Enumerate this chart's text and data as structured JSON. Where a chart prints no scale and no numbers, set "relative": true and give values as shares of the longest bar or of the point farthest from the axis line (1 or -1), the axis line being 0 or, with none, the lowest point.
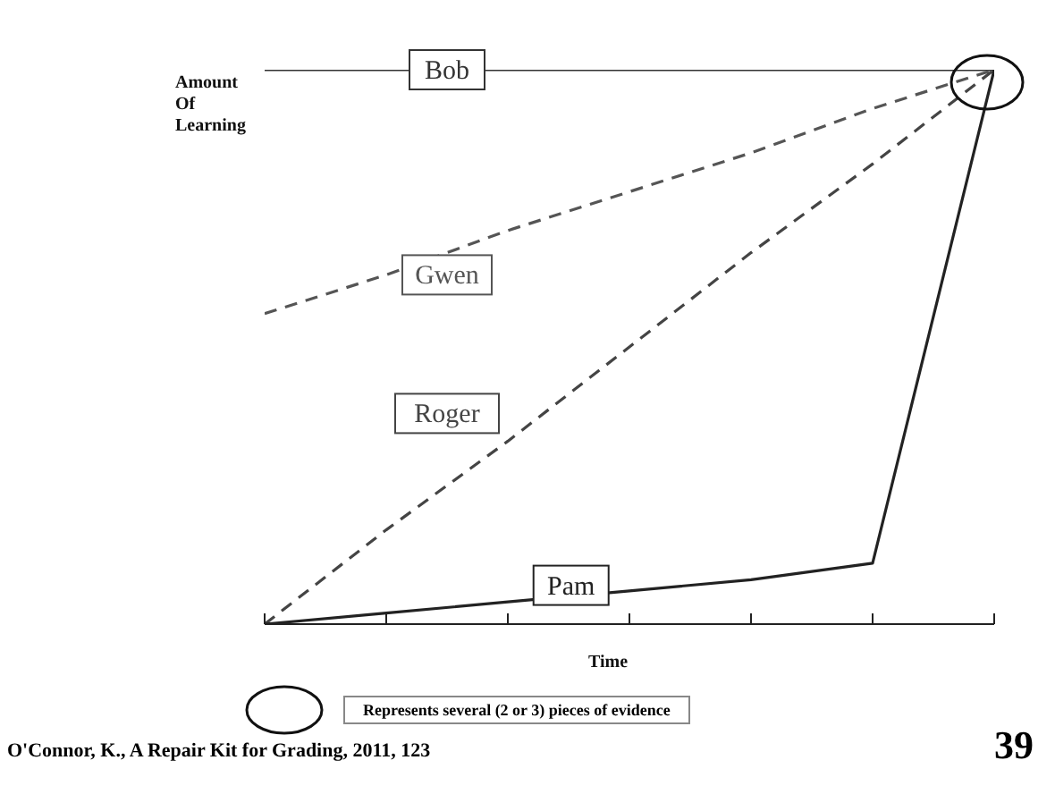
{
  "chart_data": {
    "type": "line",
    "relative": true,
    "xlabel": "Time",
    "ylabel": "Amount Of Learning",
    "categories": [
      null,
      null,
      null,
      null,
      null,
      null,
      null
    ],
    "series": [
      {
        "name": "Bob",
        "color": "#333333",
        "line_style": "solid",
        "values": [
          1,
          1,
          1,
          1,
          1,
          1,
          1
        ]
      },
      {
        "name": "Gwen",
        "color": "#555555",
        "line_style": "dashed",
        "values": [
          0.56,
          0.63,
          0.71,
          0.78,
          0.85,
          0.93,
          1
        ]
      },
      {
        "name": "Roger",
        "color": "#444444",
        "line_style": "dashed",
        "values": [
          0,
          0.17,
          0.33,
          0.5,
          0.67,
          0.83,
          1
        ]
      },
      {
        "name": "Pam",
        "color": "#222222",
        "line_style": "solid",
        "values": [
          0,
          0.02,
          0.04,
          0.06,
          0.08,
          0.11,
          1
        ]
      }
    ],
    "annotations": [
      "Represents several (2 or 3) pieces of evidence",
      "O'Connor, K., A Repair Kit for Grading, 2011, 123",
      "39"
    ],
    "grid": false,
    "legend": false,
    "marker": "none"
  }
}
